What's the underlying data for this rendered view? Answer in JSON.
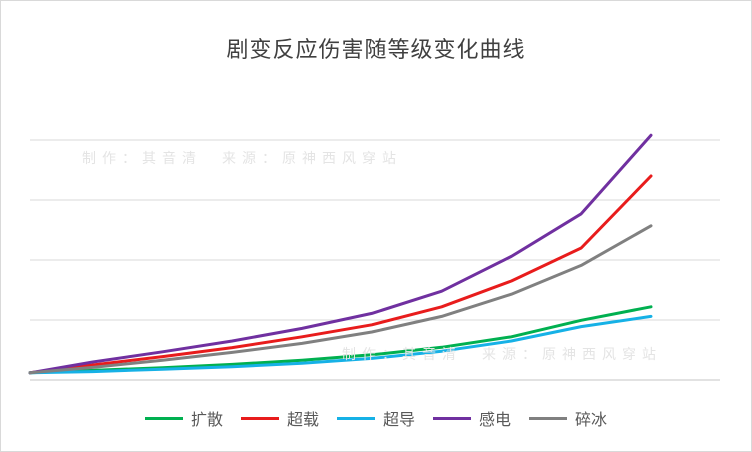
{
  "chart_data": {
    "type": "line",
    "title": "剧变反应伤害随等级变化曲线",
    "xlabel": "",
    "ylabel": "",
    "ylim": [
      0,
      5000
    ],
    "y_gridlines": [
      0,
      1000,
      2000,
      3000,
      4000
    ],
    "x_range": [
      1,
      90
    ],
    "grid": true,
    "legend_position": "bottom",
    "axis_tick_labels_shown": false,
    "series": [
      {
        "name": "扩散",
        "color": "#00B050",
        "values": [
          120,
          160,
          205,
          260,
          330,
          420,
          545,
          720,
          995,
          1220
        ]
      },
      {
        "name": "超载",
        "color": "#E81C1C",
        "values": [
          120,
          250,
          390,
          540,
          720,
          920,
          1220,
          1650,
          2200,
          3400
        ]
      },
      {
        "name": "超导",
        "color": "#16B1E6",
        "values": [
          120,
          140,
          180,
          220,
          280,
          360,
          480,
          650,
          890,
          1060
        ]
      },
      {
        "name": "感电",
        "color": "#7030A0",
        "values": [
          120,
          300,
          470,
          650,
          860,
          1110,
          1480,
          2060,
          2770,
          4080
        ]
      },
      {
        "name": "碎冰",
        "color": "#808080",
        "values": [
          120,
          210,
          330,
          460,
          610,
          800,
          1060,
          1430,
          1910,
          2570
        ]
      }
    ],
    "x": [
      1,
      10,
      20,
      30,
      40,
      50,
      60,
      70,
      80,
      90
    ]
  },
  "watermark": {
    "text": "制作：其音清　来源：原神西风穿站"
  }
}
